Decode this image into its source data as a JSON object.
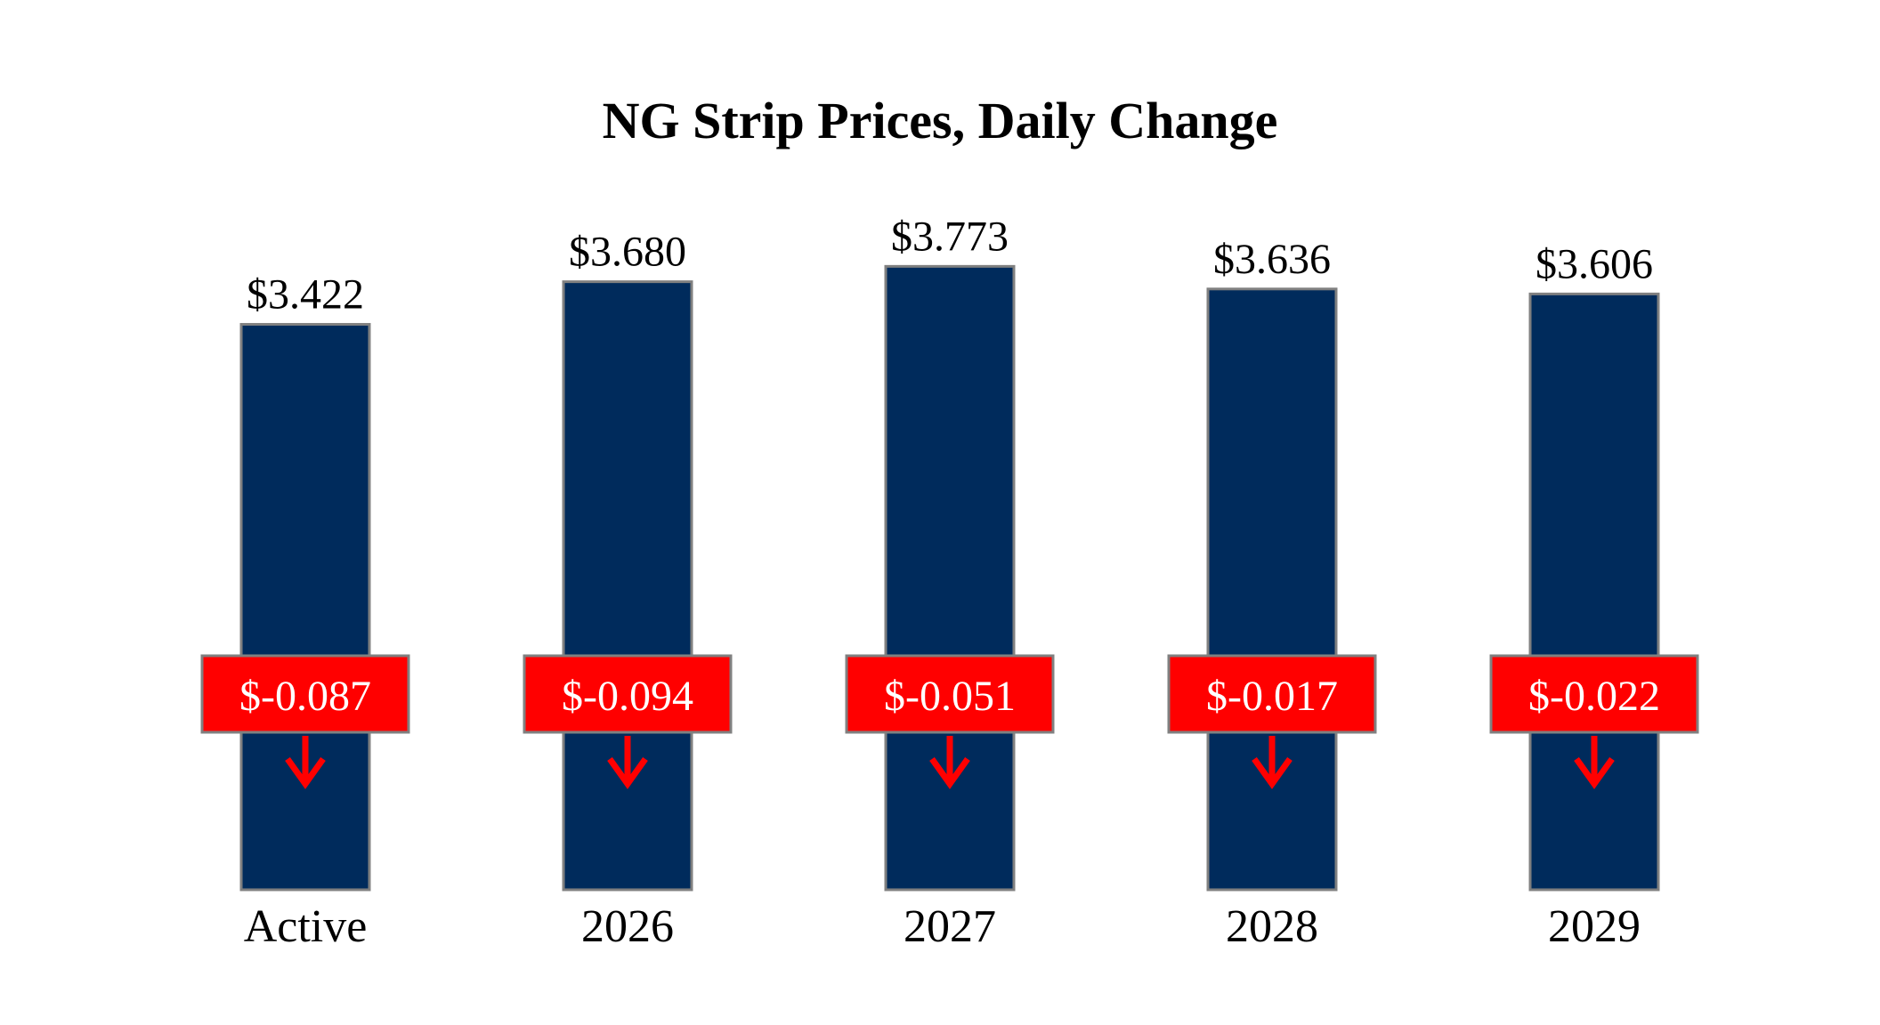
{
  "chart_data": {
    "type": "bar",
    "title": "NG Strip Prices, Daily Change",
    "categories": [
      "Active",
      "2026",
      "2027",
      "2028",
      "2029"
    ],
    "series": [
      {
        "values": [
          3.422,
          3.68,
          3.773,
          3.636,
          3.606
        ],
        "value_labels": [
          "$3.422",
          "$3.680",
          "$3.773",
          "$3.636",
          "$3.606"
        ]
      }
    ],
    "daily_change": {
      "values": [
        -0.087,
        -0.094,
        -0.051,
        -0.017,
        -0.022
      ],
      "labels": [
        "$-0.087",
        "$-0.094",
        "$-0.051",
        "$-0.017",
        "$-0.022"
      ],
      "direction_icon": "down-arrow-icon"
    },
    "xlabel": "",
    "ylabel": "",
    "grid": false,
    "legend": "none",
    "colors": {
      "bar": "#002b5c",
      "bar_border": "#808080",
      "change_box": "#ff0000",
      "change_box_border": "#808080",
      "change_text": "#ffffff",
      "arrow": "#ff0000"
    }
  }
}
